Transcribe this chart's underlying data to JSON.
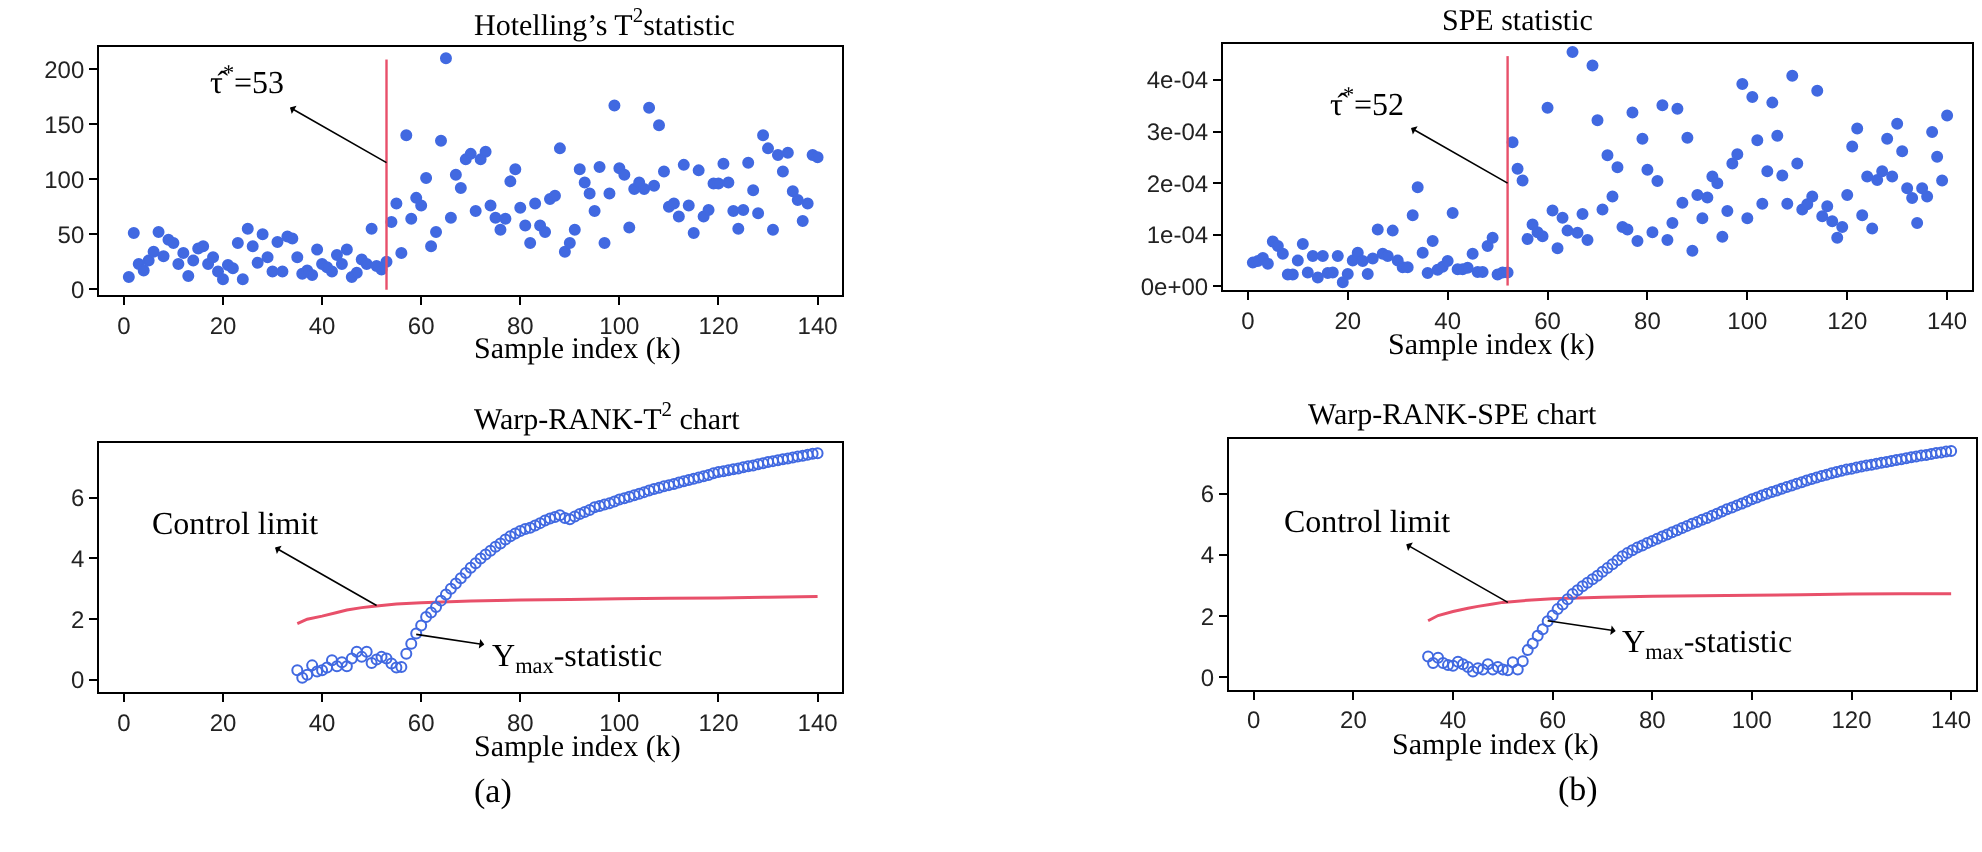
{
  "chart_data": [
    {
      "type": "scatter",
      "title": "Hotelling’s T$^{2}$statistic",
      "xlabel": "Sample index (k)",
      "marker": "circle",
      "xlim": [
        -5,
        145
      ],
      "xticks": [
        0,
        20,
        40,
        60,
        80,
        100,
        120,
        140
      ],
      "ylim": [
        -5,
        220
      ],
      "yticks": [
        0,
        50,
        100,
        150,
        200
      ],
      "ref_lines": [
        {
          "axis": "x",
          "value": 53,
          "color": "#e8506a"
        }
      ],
      "annotations": [
        {
          "text": "τ̂$^{*}$=53",
          "x": 53,
          "y": 115
        }
      ],
      "series": [
        {
          "color": "#4169e1",
          "x": [
            1,
            2,
            3,
            4,
            5,
            6,
            7,
            8,
            9,
            10,
            11,
            12,
            13,
            14,
            15,
            16,
            17,
            18,
            19,
            20,
            21,
            22,
            23,
            24,
            25,
            26,
            27,
            28,
            29,
            30,
            31,
            32,
            33,
            34,
            35,
            36,
            37,
            38,
            39,
            40,
            41,
            42,
            43,
            44,
            45,
            46,
            47,
            48,
            49,
            50,
            51,
            52,
            53,
            54,
            55,
            56,
            57,
            58,
            59,
            60,
            61,
            62,
            63,
            64,
            65,
            66,
            67,
            68,
            69,
            70,
            71,
            72,
            73,
            74,
            75,
            76,
            77,
            78,
            79,
            80,
            81,
            82,
            83,
            84,
            85,
            86,
            87,
            88,
            89,
            90,
            91,
            92,
            93,
            94,
            95,
            96,
            97,
            98,
            99,
            100,
            101,
            102,
            103,
            104,
            105,
            106,
            107,
            108,
            109,
            110,
            111,
            112,
            113,
            114,
            115,
            116,
            117,
            118,
            119,
            120,
            121,
            122,
            123,
            124,
            125,
            126,
            127,
            128,
            129,
            130,
            131,
            132,
            133,
            134,
            135,
            136,
            137,
            138,
            139,
            140
          ],
          "values": [
            11,
            51,
            23,
            17,
            26,
            34,
            52,
            30,
            45,
            42,
            23,
            33,
            12,
            26,
            37,
            39,
            23,
            29,
            16,
            9,
            22,
            19,
            42,
            9,
            55,
            39,
            24,
            50,
            29,
            16,
            43,
            16,
            48,
            46,
            29,
            14,
            17,
            13,
            36,
            23,
            20,
            16,
            31,
            23,
            36,
            11,
            15,
            27,
            23,
            55,
            21,
            18,
            25,
            61,
            78,
            33,
            140,
            64,
            83,
            76,
            101,
            39,
            52,
            135,
            210,
            65,
            104,
            92,
            118,
            123,
            71,
            118,
            125,
            76,
            65,
            54,
            64,
            98,
            109,
            74,
            58,
            42,
            78,
            58,
            52,
            82,
            85,
            128,
            34,
            42,
            54,
            109,
            97,
            87,
            71,
            111,
            42,
            87,
            167,
            110,
            104,
            56,
            91,
            97,
            91,
            165,
            94,
            149,
            107,
            75,
            78,
            66,
            113,
            76,
            51,
            108,
            66,
            72,
            96,
            96,
            114,
            97,
            71,
            55,
            72,
            115,
            90,
            69,
            140,
            128,
            54,
            122,
            107,
            124,
            89,
            81,
            62,
            78,
            122,
            120
          ]
        }
      ]
    },
    {
      "type": "scatter",
      "title": "SPE statistic",
      "xlabel": "Sample index (k)",
      "marker": "circle",
      "xlim": [
        -5,
        145
      ],
      "xticks": [
        0,
        20,
        40,
        60,
        80,
        100,
        120,
        140
      ],
      "ylim": [
        -8e-06,
        0.00047
      ],
      "yticks": [
        {
          "value": 0,
          "label": "0e+00"
        },
        {
          "value": 0.0001,
          "label": "1e-04"
        },
        {
          "value": 0.0002,
          "label": "2e-04"
        },
        {
          "value": 0.0003,
          "label": "3e-04"
        },
        {
          "value": 0.0004,
          "label": "4e-04"
        }
      ],
      "ref_lines": [
        {
          "axis": "x",
          "value": 52,
          "color": "#e8506a"
        }
      ],
      "annotations": [
        {
          "text": "τ̂$^{*}$=52",
          "x": 52,
          "y": 0.0002
        }
      ],
      "series": [
        {
          "color": "#4169e1",
          "x": [
            1,
            2,
            3,
            4,
            5,
            6,
            7,
            8,
            9,
            10,
            11,
            12,
            13,
            14,
            15,
            16,
            17,
            18,
            19,
            20,
            21,
            22,
            23,
            24,
            25,
            26,
            27,
            28,
            29,
            30,
            31,
            32,
            33,
            34,
            35,
            36,
            37,
            38,
            39,
            40,
            41,
            42,
            43,
            44,
            45,
            46,
            47,
            48,
            49,
            50,
            51,
            52,
            53,
            54,
            55,
            56,
            57,
            58,
            59,
            60,
            61,
            62,
            63,
            64,
            65,
            66,
            67,
            68,
            69,
            70,
            71,
            72,
            73,
            74,
            75,
            76,
            77,
            78,
            79,
            80,
            81,
            82,
            83,
            84,
            85,
            86,
            87,
            88,
            89,
            90,
            91,
            92,
            93,
            94,
            95,
            96,
            97,
            98,
            99,
            100,
            101,
            102,
            103,
            104,
            105,
            106,
            107,
            108,
            109,
            110,
            111,
            112,
            113,
            114,
            115,
            116,
            117,
            118,
            119,
            120,
            121,
            122,
            123,
            124,
            125,
            126,
            127,
            128,
            129,
            130,
            131,
            132,
            133,
            134,
            135,
            136,
            137,
            138,
            139,
            140
          ],
          "values": [
            4.6e-05,
            4.9e-05,
            5.5e-05,
            4.4e-05,
            8.7e-05,
            7.8e-05,
            6.3e-05,
            2.3e-05,
            2.3e-05,
            5e-05,
            8.2e-05,
            2.7e-05,
            5.9e-05,
            1.7e-05,
            5.9e-05,
            2.6e-05,
            2.7e-05,
            5.9e-05,
            8e-06,
            2.4e-05,
            5e-05,
            6.5e-05,
            4.9e-05,
            2.4e-05,
            5.4e-05,
            0.00011,
            6.3e-05,
            5.9e-05,
            0.000108,
            5e-05,
            3.7e-05,
            3.7e-05,
            0.000138,
            0.000192,
            6.5e-05,
            2.6e-05,
            8.8e-05,
            3.2e-05,
            3.8e-05,
            4.9e-05,
            0.000142,
            3.3e-05,
            3.3e-05,
            3.6e-05,
            6.3e-05,
            2.8e-05,
            2.8e-05,
            7.8e-05,
            9.4e-05,
            2.3e-05,
            2.7e-05,
            2.7e-05,
            0.000279,
            0.000228,
            0.000205,
            9.2e-05,
            0.00012,
            0.000105,
            9.7e-05,
            0.000346,
            0.000147,
            7.4e-05,
            0.000133,
            0.000108,
            0.000454,
            0.000104,
            0.00014,
            9e-05,
            0.000428,
            0.000322,
            0.000149,
            0.000254,
            0.000174,
            0.000231,
            0.000115,
            0.00011,
            0.000337,
            8.8e-05,
            0.000286,
            0.000226,
            0.000105,
            0.000204,
            0.000351,
            9e-05,
            0.000123,
            0.000344,
            0.000162,
            0.000288,
            6.9e-05,
            0.000177,
            0.000132,
            0.000172,
            0.000213,
            0.0002,
            9.6e-05,
            0.000146,
            0.000238,
            0.000256,
            0.000392,
            0.000132,
            0.000367,
            0.000283,
            0.00016,
            0.000223,
            0.000356,
            0.000292,
            0.000215,
            0.00016,
            0.000408,
            0.000238,
            0.000149,
            0.000159,
            0.000174,
            0.000379,
            0.000136,
            0.000155,
            0.000126,
            9.4e-05,
            0.000115,
            0.000177,
            0.000271,
            0.000306,
            0.000138,
            0.000213,
            0.000112,
            0.000206,
            0.000223,
            0.000286,
            0.000213,
            0.000315,
            0.000262,
            0.00019,
            0.000171,
            0.000123,
            0.00019,
            0.000174,
            0.000299,
            0.000251,
            0.000205,
            0.000331
          ]
        }
      ]
    },
    {
      "type": "scatter",
      "title": "Warp-RANK-T$^{2}$ chart",
      "xlabel": "Sample index (k)",
      "marker": "circle",
      "xlim": [
        -5,
        145
      ],
      "xticks": [
        0,
        20,
        40,
        60,
        80,
        100,
        120,
        140
      ],
      "ylim": [
        -0.4,
        7.8
      ],
      "yticks": [
        0,
        2,
        4,
        6
      ],
      "annotations": [
        {
          "text": "Control limit",
          "x": 51,
          "y": 2.45
        },
        {
          "text": "Y$_{max}$-statistic",
          "x": 59,
          "y": 1.5
        },
        "(a)"
      ],
      "series": [
        {
          "type": "line",
          "marker": "none",
          "color": "#e8506a",
          "x": [
            35,
            37,
            40,
            43,
            45,
            48,
            50,
            55,
            60,
            70,
            80,
            90,
            100,
            110,
            120,
            130,
            140
          ],
          "values": [
            1.85,
            2.0,
            2.1,
            2.22,
            2.3,
            2.38,
            2.42,
            2.5,
            2.54,
            2.6,
            2.63,
            2.65,
            2.67,
            2.69,
            2.7,
            2.72,
            2.75
          ]
        },
        {
          "color": "#4169e1",
          "x": [
            35,
            36,
            37,
            38,
            39,
            40,
            41,
            42,
            43,
            44,
            45,
            46,
            47,
            48,
            49,
            50,
            51,
            52,
            53,
            54,
            55,
            56,
            57,
            58,
            59,
            60,
            61,
            62,
            63,
            64,
            65,
            66,
            67,
            68,
            69,
            70,
            71,
            72,
            73,
            74,
            75,
            76,
            77,
            78,
            79,
            80,
            81,
            82,
            83,
            84,
            85,
            86,
            87,
            88,
            89,
            90,
            91,
            92,
            93,
            94,
            95,
            96,
            97,
            98,
            99,
            100,
            101,
            102,
            103,
            104,
            105,
            106,
            107,
            108,
            109,
            110,
            111,
            112,
            113,
            114,
            115,
            116,
            117,
            118,
            119,
            120,
            121,
            122,
            123,
            124,
            125,
            126,
            127,
            128,
            129,
            130,
            131,
            132,
            133,
            134,
            135,
            136,
            137,
            138,
            139,
            140
          ],
          "values": [
            0.32,
            0.07,
            0.17,
            0.48,
            0.28,
            0.32,
            0.41,
            0.65,
            0.45,
            0.58,
            0.45,
            0.71,
            0.93,
            0.76,
            0.93,
            0.56,
            0.67,
            0.76,
            0.71,
            0.54,
            0.41,
            0.43,
            0.86,
            1.19,
            1.53,
            1.79,
            2.07,
            2.22,
            2.4,
            2.61,
            2.81,
            3.0,
            3.17,
            3.35,
            3.52,
            3.69,
            3.84,
            4.0,
            4.13,
            4.25,
            4.38,
            4.49,
            4.62,
            4.73,
            4.82,
            4.9,
            4.97,
            5.01,
            5.08,
            5.16,
            5.25,
            5.31,
            5.36,
            5.42,
            5.33,
            5.29,
            5.38,
            5.46,
            5.53,
            5.59,
            5.68,
            5.72,
            5.77,
            5.81,
            5.87,
            5.94,
            5.98,
            6.03,
            6.08,
            6.13,
            6.18,
            6.23,
            6.28,
            6.32,
            6.37,
            6.41,
            6.45,
            6.5,
            6.54,
            6.58,
            6.62,
            6.66,
            6.7,
            6.74,
            6.8,
            6.84,
            6.87,
            6.9,
            6.93,
            6.96,
            7.0,
            7.03,
            7.06,
            7.1,
            7.13,
            7.17,
            7.2,
            7.23,
            7.26,
            7.29,
            7.32,
            7.35,
            7.38,
            7.41,
            7.44,
            7.46
          ]
        }
      ]
    },
    {
      "type": "scatter",
      "title": "Warp-RANK-SPE chart",
      "xlabel": "Sample index (k)",
      "marker": "circle",
      "xlim": [
        -5,
        145
      ],
      "xticks": [
        0,
        20,
        40,
        60,
        80,
        100,
        120,
        140
      ],
      "ylim": [
        -0.4,
        7.8
      ],
      "yticks": [
        0,
        2,
        4,
        6
      ],
      "annotations": [
        {
          "text": "Control limit",
          "x": 51,
          "y": 2.45
        },
        {
          "text": "Y$_{max}$-statistic",
          "x": 59,
          "y": 1.85
        },
        "(b)"
      ],
      "series": [
        {
          "type": "line",
          "marker": "none",
          "color": "#e8506a",
          "x": [
            35,
            37,
            40,
            43,
            45,
            48,
            50,
            55,
            60,
            70,
            80,
            90,
            100,
            110,
            120,
            130,
            140
          ],
          "values": [
            1.85,
            2.02,
            2.15,
            2.26,
            2.32,
            2.4,
            2.45,
            2.52,
            2.57,
            2.62,
            2.65,
            2.67,
            2.68,
            2.7,
            2.72,
            2.73,
            2.73
          ]
        },
        {
          "color": "#4169e1",
          "x": [
            35,
            36,
            37,
            38,
            39,
            40,
            41,
            42,
            43,
            44,
            45,
            46,
            47,
            48,
            49,
            50,
            51,
            52,
            53,
            54,
            55,
            56,
            57,
            58,
            59,
            60,
            61,
            62,
            63,
            64,
            65,
            66,
            67,
            68,
            69,
            70,
            71,
            72,
            73,
            74,
            75,
            76,
            77,
            78,
            79,
            80,
            81,
            82,
            83,
            84,
            85,
            86,
            87,
            88,
            89,
            90,
            91,
            92,
            93,
            94,
            95,
            96,
            97,
            98,
            99,
            100,
            101,
            102,
            103,
            104,
            105,
            106,
            107,
            108,
            109,
            110,
            111,
            112,
            113,
            114,
            115,
            116,
            117,
            118,
            119,
            120,
            121,
            122,
            123,
            124,
            125,
            126,
            127,
            128,
            129,
            130,
            131,
            132,
            133,
            134,
            135,
            136,
            137,
            138,
            139,
            140
          ],
          "values": [
            0.68,
            0.47,
            0.64,
            0.47,
            0.4,
            0.38,
            0.51,
            0.43,
            0.34,
            0.19,
            0.3,
            0.26,
            0.43,
            0.26,
            0.34,
            0.26,
            0.23,
            0.49,
            0.26,
            0.53,
            0.89,
            1.11,
            1.36,
            1.57,
            1.83,
            2.02,
            2.23,
            2.38,
            2.55,
            2.72,
            2.85,
            2.98,
            3.09,
            3.21,
            3.32,
            3.45,
            3.57,
            3.7,
            3.83,
            3.96,
            4.06,
            4.15,
            4.24,
            4.31,
            4.39,
            4.46,
            4.53,
            4.6,
            4.67,
            4.74,
            4.81,
            4.88,
            4.95,
            5.02,
            5.08,
            5.15,
            5.21,
            5.28,
            5.35,
            5.42,
            5.49,
            5.55,
            5.62,
            5.68,
            5.75,
            5.82,
            5.88,
            5.94,
            6.0,
            6.06,
            6.11,
            6.16,
            6.22,
            6.27,
            6.33,
            6.38,
            6.43,
            6.48,
            6.53,
            6.58,
            6.62,
            6.67,
            6.71,
            6.75,
            6.79,
            6.82,
            6.86,
            6.89,
            6.92,
            6.95,
            6.98,
            7.01,
            7.04,
            7.07,
            7.1,
            7.13,
            7.16,
            7.19,
            7.22,
            7.25,
            7.27,
            7.3,
            7.33,
            7.35,
            7.38,
            7.4
          ]
        }
      ]
    }
  ]
}
